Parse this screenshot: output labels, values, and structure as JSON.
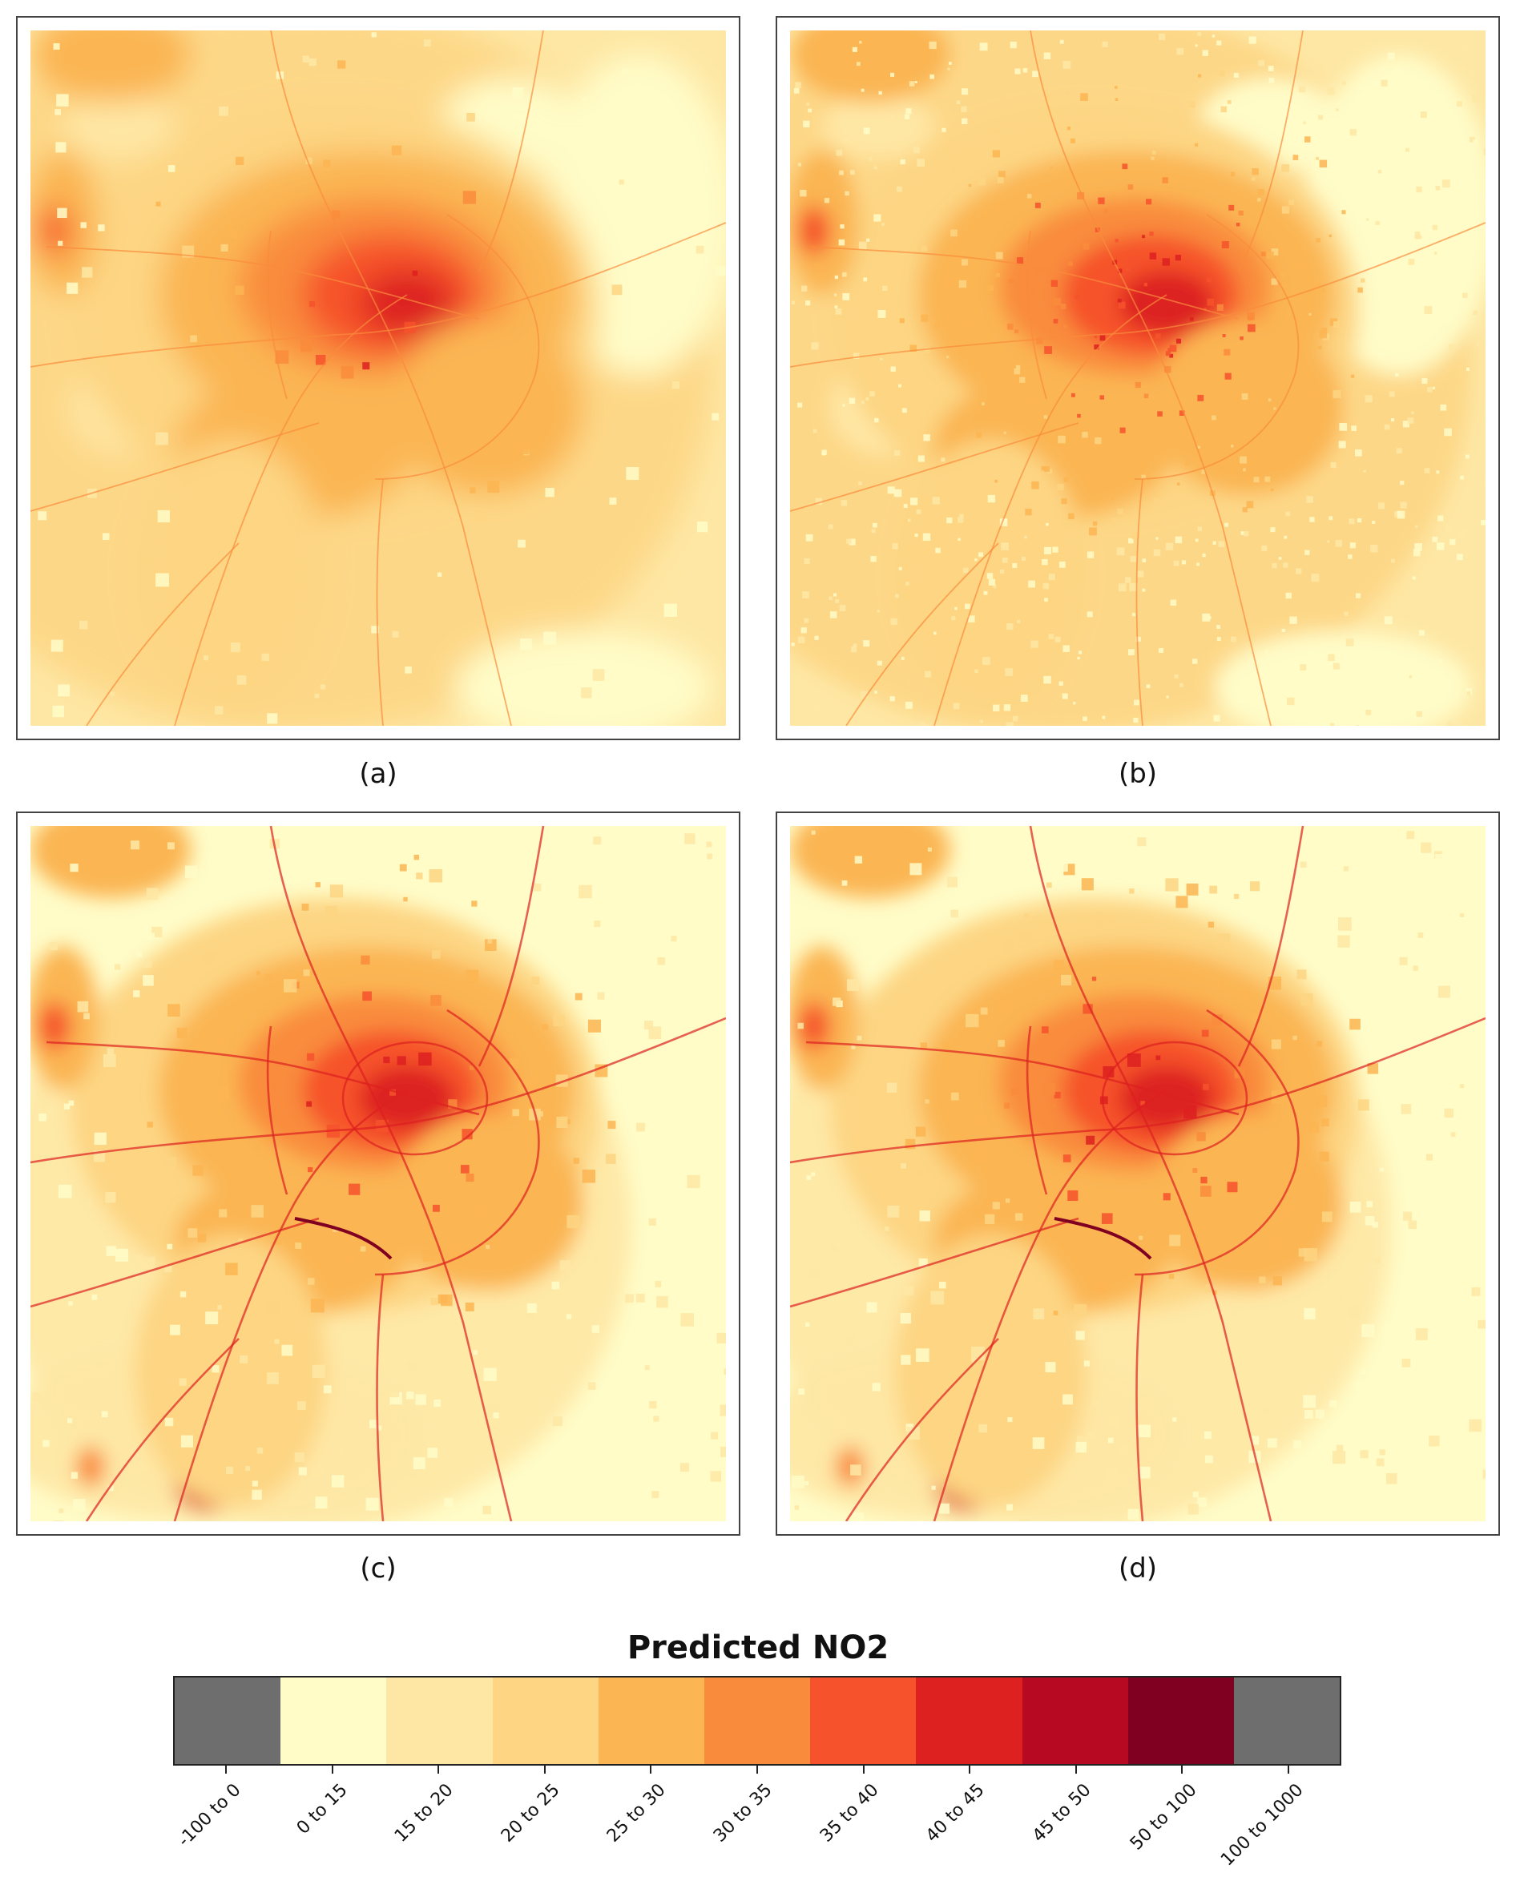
{
  "panels": [
    {
      "id": "a",
      "caption": "(a)",
      "style": "smooth"
    },
    {
      "id": "b",
      "caption": "(b)",
      "style": "speckled"
    },
    {
      "id": "c",
      "caption": "(c)",
      "style": "blob"
    },
    {
      "id": "d",
      "caption": "(d)",
      "style": "blob"
    }
  ],
  "legend": {
    "title": "Predicted NO2",
    "classes": [
      {
        "label": "-100 to 0",
        "color": "#6e6e6e"
      },
      {
        "label": "0 to 15",
        "color": "#fffcc8"
      },
      {
        "label": "15 to 20",
        "color": "#fee7a4"
      },
      {
        "label": "20 to 25",
        "color": "#fdd583"
      },
      {
        "label": "25 to 30",
        "color": "#fbb552"
      },
      {
        "label": "30 to 35",
        "color": "#f98c3c"
      },
      {
        "label": "35 to 40",
        "color": "#f6522b"
      },
      {
        "label": "40 to 45",
        "color": "#dd2020"
      },
      {
        "label": "45 to 50",
        "color": "#b70a22"
      },
      {
        "label": "50 to 100",
        "color": "#800021"
      },
      {
        "label": "100 to 1000",
        "color": "#6e6e6e"
      }
    ]
  }
}
